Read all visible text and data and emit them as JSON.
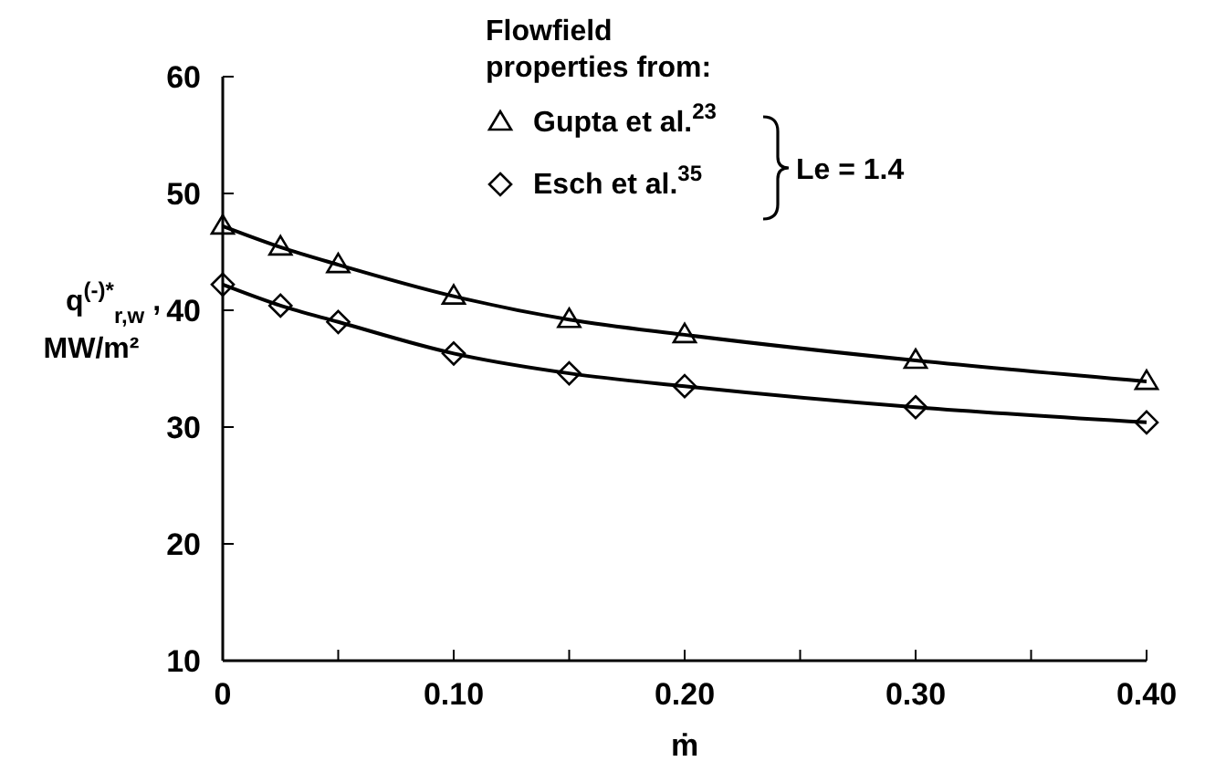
{
  "chart_data": {
    "type": "line",
    "ylabel": "q$^{(-)*}$$_{r,w}$ ,\nMW/m²",
    "xlabel": "ṁ",
    "legend_title": "Flowfield\nproperties from:",
    "legend": "top",
    "annotations": [
      "Le = 1.4"
    ],
    "x": [
      0,
      0.025,
      0.05,
      0.1,
      0.15,
      0.2,
      0.3,
      0.4
    ],
    "series": [
      {
        "name": "Gupta et al.$^{23}$",
        "color": "#000000",
        "marker": "triangle",
        "values": [
          47.2,
          45.4,
          43.9,
          41.2,
          39.2,
          37.9,
          35.7,
          33.9
        ]
      },
      {
        "name": "Esch et al.$^{35}$",
        "color": "#000000",
        "marker": "diamond",
        "values": [
          42.2,
          40.4,
          39.0,
          36.3,
          34.6,
          33.5,
          31.7,
          30.4
        ]
      }
    ],
    "xlim": [
      0,
      0.4
    ],
    "ylim": [
      10,
      60
    ],
    "xticks": [
      0,
      {
        "value": 0.05,
        "label": null
      },
      {
        "value": 0.1,
        "label": "0.10"
      },
      {
        "value": 0.15,
        "label": null
      },
      {
        "value": 0.2,
        "label": "0.20"
      },
      {
        "value": 0.25,
        "label": null
      },
      {
        "value": 0.3,
        "label": "0.30"
      },
      {
        "value": 0.35,
        "label": null
      },
      {
        "value": 0.4,
        "label": "0.40"
      }
    ],
    "yticks": [
      10,
      20,
      30,
      40,
      50,
      60
    ],
    "line_style": "solid",
    "grid": false
  }
}
